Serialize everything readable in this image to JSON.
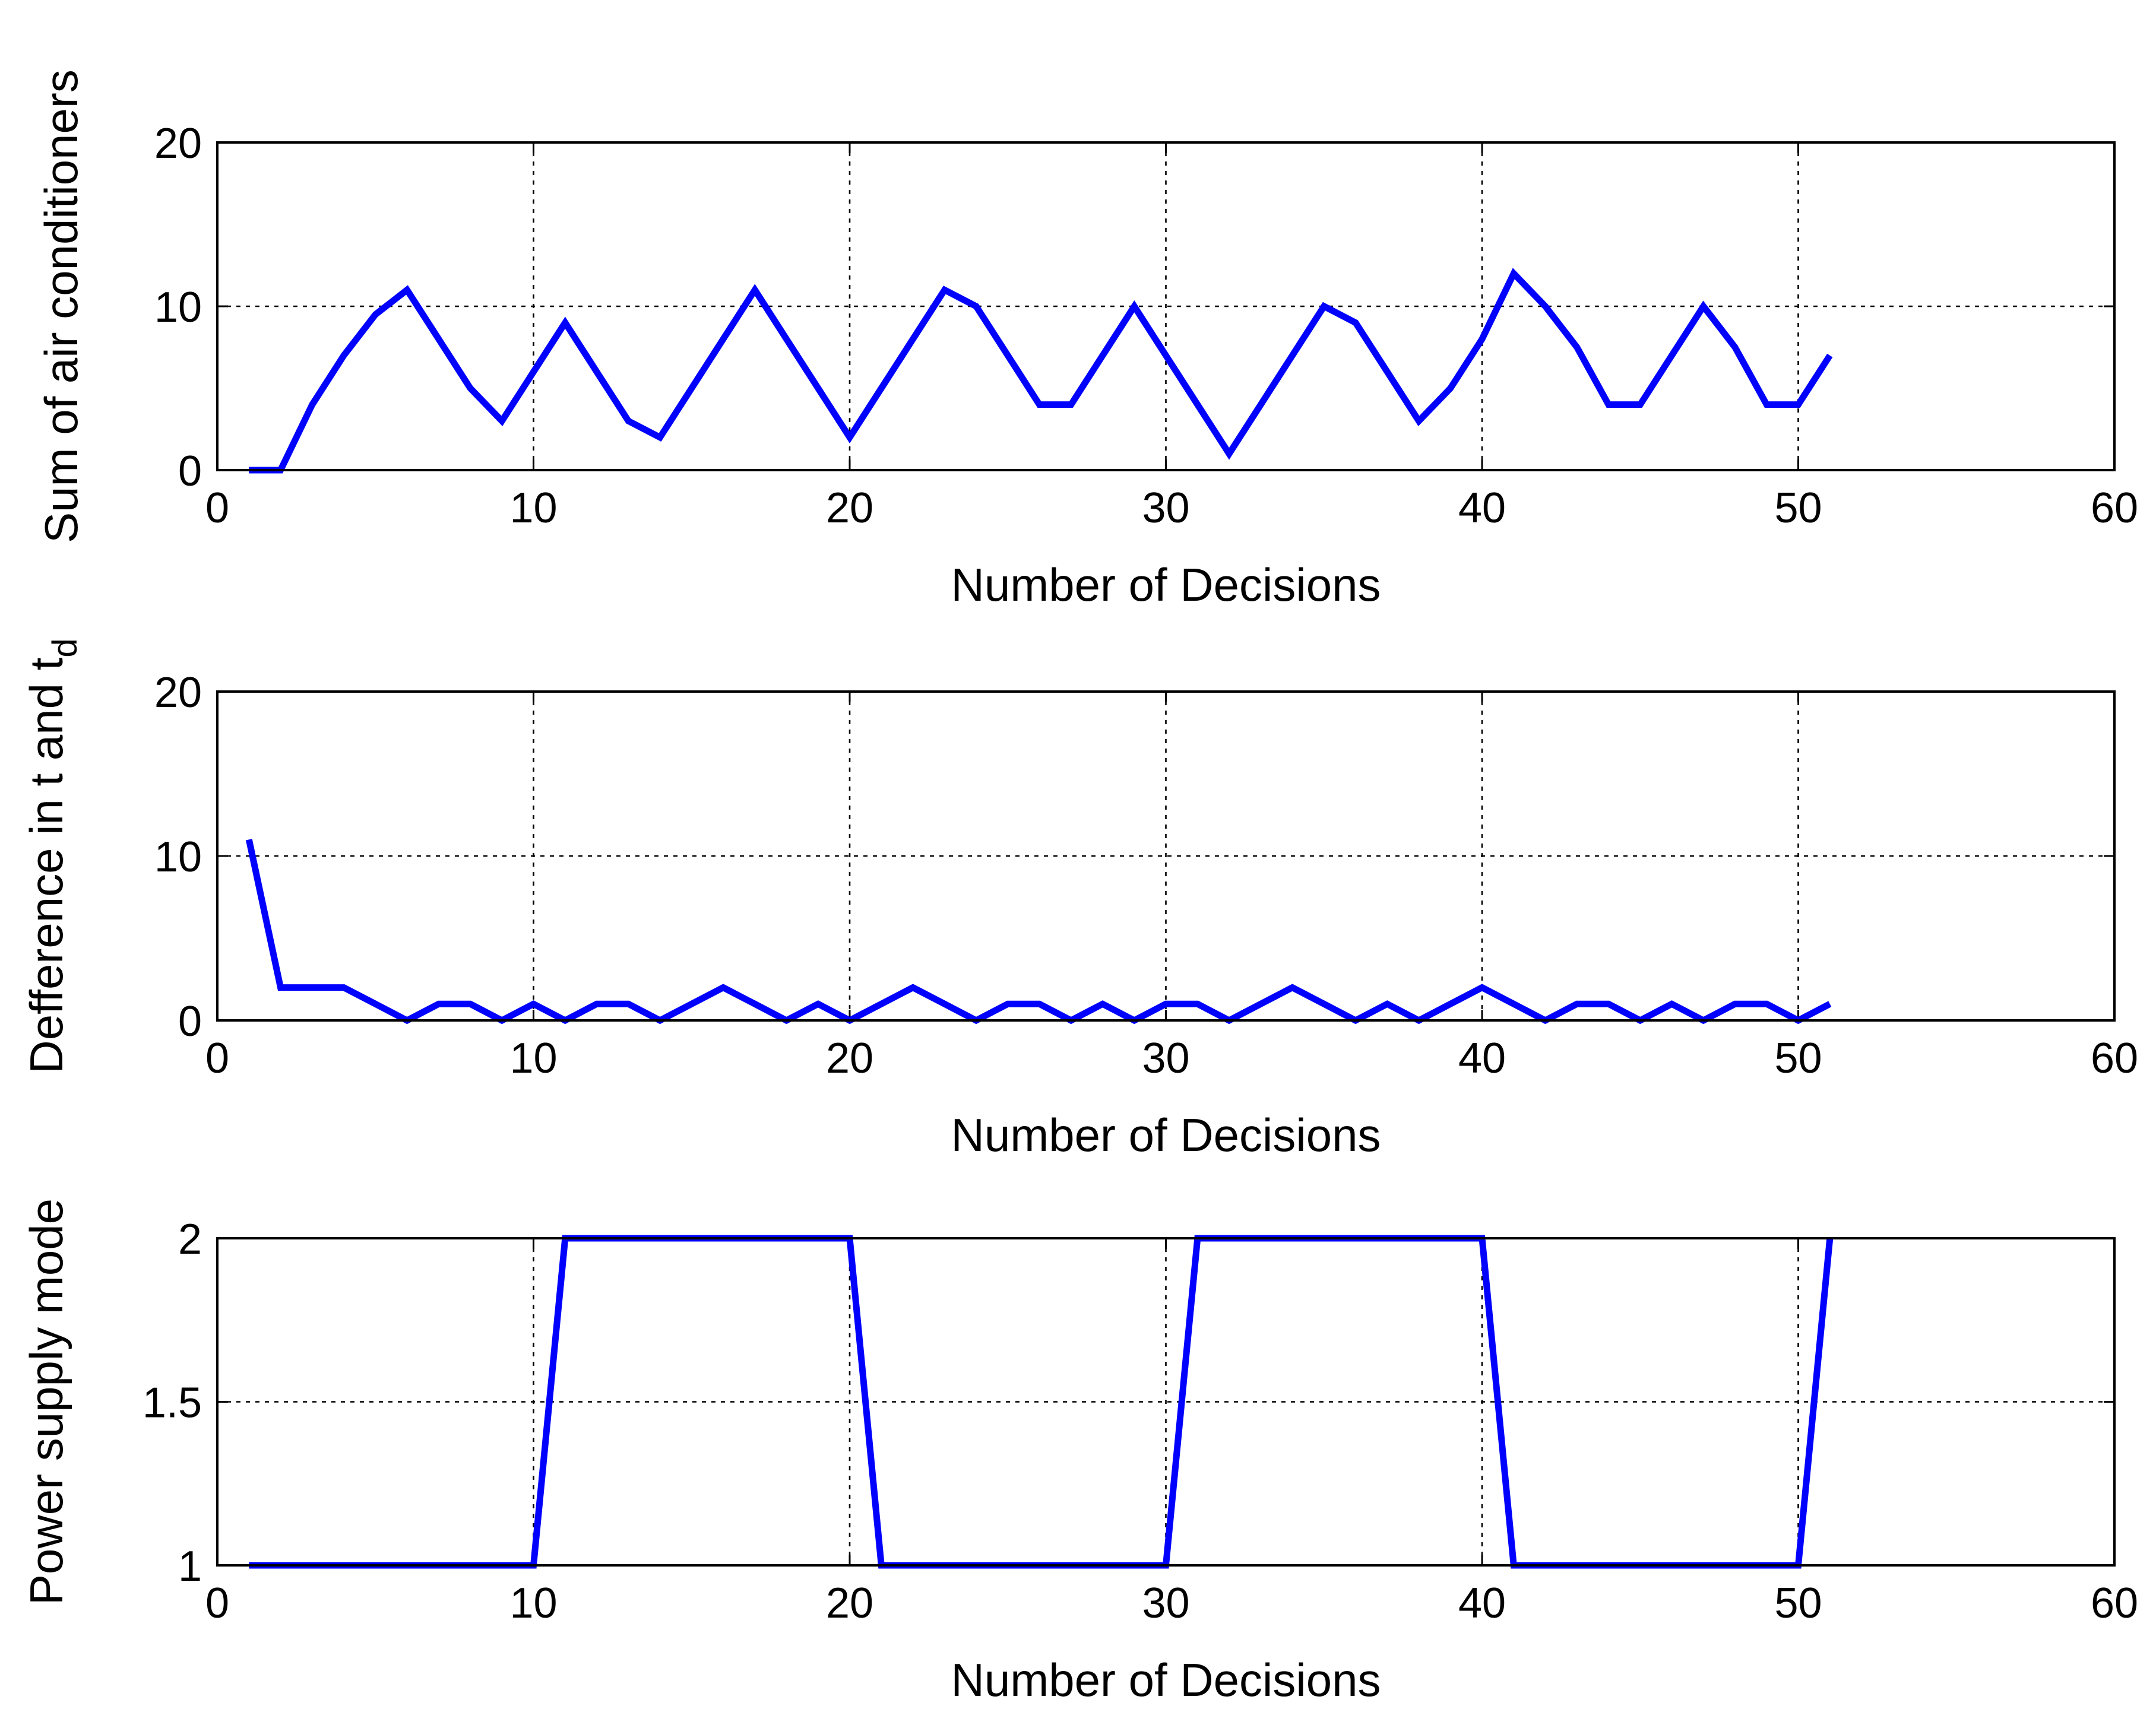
{
  "colors": {
    "series": "#0000FF",
    "axes": "#000000",
    "background": "#FFFFFF"
  },
  "chart_data": [
    {
      "type": "line",
      "xlabel": "Number of Decisions",
      "ylabel": "Sum of air conditioners",
      "xlim": [
        0,
        60
      ],
      "ylim": [
        0,
        20
      ],
      "xticks": [
        0,
        10,
        20,
        30,
        40,
        50,
        60
      ],
      "yticks": [
        0,
        10,
        20
      ],
      "grid": true,
      "legend": "none",
      "series": [
        {
          "x": [
            1,
            2,
            3,
            4,
            5,
            6,
            7,
            8,
            9,
            10,
            11,
            12,
            13,
            14,
            15,
            16,
            17,
            18,
            19,
            20,
            21,
            22,
            23,
            24,
            25,
            26,
            27,
            28,
            29,
            30,
            31,
            32,
            33,
            34,
            35,
            36,
            37,
            38,
            39,
            40,
            41,
            42,
            43,
            44,
            45,
            46,
            47,
            48,
            49,
            50,
            51
          ],
          "y": [
            0,
            0,
            4,
            7,
            9.5,
            11,
            8,
            5,
            3,
            6,
            9,
            6,
            3,
            2,
            5,
            8,
            11,
            8,
            5,
            2,
            5,
            8,
            11,
            10,
            7,
            4,
            4,
            7,
            10,
            7,
            4,
            1,
            4,
            7,
            10,
            9,
            6,
            3,
            5,
            8,
            12,
            10,
            7.5,
            4,
            4,
            7,
            10,
            7.5,
            4,
            4,
            7
          ]
        }
      ]
    },
    {
      "type": "line",
      "xlabel": "Number of Decisions",
      "ylabel": "Defference in t and t",
      "ylabel_subscript": "d",
      "xlim": [
        0,
        60
      ],
      "ylim": [
        0,
        20
      ],
      "xticks": [
        0,
        10,
        20,
        30,
        40,
        50,
        60
      ],
      "yticks": [
        0,
        10,
        20
      ],
      "grid": true,
      "legend": "none",
      "series": [
        {
          "x": [
            1,
            2,
            3,
            4,
            5,
            6,
            7,
            8,
            9,
            10,
            11,
            12,
            13,
            14,
            15,
            16,
            17,
            18,
            19,
            20,
            21,
            22,
            23,
            24,
            25,
            26,
            27,
            28,
            29,
            30,
            31,
            32,
            33,
            34,
            35,
            36,
            37,
            38,
            39,
            40,
            41,
            42,
            43,
            44,
            45,
            46,
            47,
            48,
            49,
            50,
            51
          ],
          "y": [
            11,
            2,
            2,
            2,
            1,
            0,
            1,
            1,
            0,
            1,
            0,
            1,
            1,
            0,
            1,
            2,
            1,
            0,
            1,
            0,
            1,
            2,
            1,
            0,
            1,
            1,
            0,
            1,
            0,
            1,
            1,
            0,
            1,
            2,
            1,
            0,
            1,
            0,
            1,
            2,
            1,
            0,
            1,
            1,
            0,
            1,
            0,
            1,
            1,
            0,
            1
          ]
        }
      ]
    },
    {
      "type": "line",
      "xlabel": "Number of Decisions",
      "ylabel": "Power supply mode",
      "xlim": [
        0,
        60
      ],
      "ylim": [
        1,
        2
      ],
      "xticks": [
        0,
        10,
        20,
        30,
        40,
        50,
        60
      ],
      "yticks": [
        1,
        1.5,
        2
      ],
      "grid": true,
      "legend": "none",
      "series": [
        {
          "x": [
            1,
            10,
            11,
            20,
            21,
            30,
            31,
            40,
            41,
            50,
            51
          ],
          "y": [
            1,
            1,
            2,
            2,
            1,
            1,
            2,
            2,
            1,
            1,
            2
          ]
        }
      ]
    }
  ]
}
